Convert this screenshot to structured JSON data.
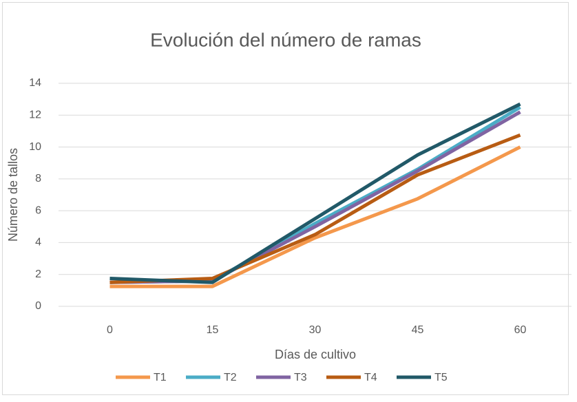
{
  "chart_data": {
    "type": "line",
    "title": "Evolución del número de ramas",
    "xlabel": "Días de cultivo",
    "ylabel": "Número de tallos",
    "categories": [
      "0",
      "15",
      "30",
      "45",
      "60"
    ],
    "series": [
      {
        "name": "T1",
        "color": "#f4984c",
        "values": [
          1.25,
          1.25,
          4.3,
          6.75,
          10.0
        ]
      },
      {
        "name": "T2",
        "color": "#4bacc6",
        "values": [
          1.5,
          1.6,
          5.2,
          8.6,
          12.5
        ]
      },
      {
        "name": "T3",
        "color": "#8064a2",
        "values": [
          1.5,
          1.6,
          5.0,
          8.5,
          12.2
        ]
      },
      {
        "name": "T4",
        "color": "#b85c13",
        "values": [
          1.5,
          1.75,
          4.5,
          8.25,
          10.75
        ]
      },
      {
        "name": "T5",
        "color": "#215968",
        "values": [
          1.75,
          1.5,
          5.5,
          9.5,
          12.7
        ]
      }
    ],
    "ylim": [
      0,
      14
    ],
    "yticks": [
      0,
      2,
      4,
      6,
      8,
      10,
      12,
      14
    ],
    "grid": true,
    "legend": "bottom"
  }
}
